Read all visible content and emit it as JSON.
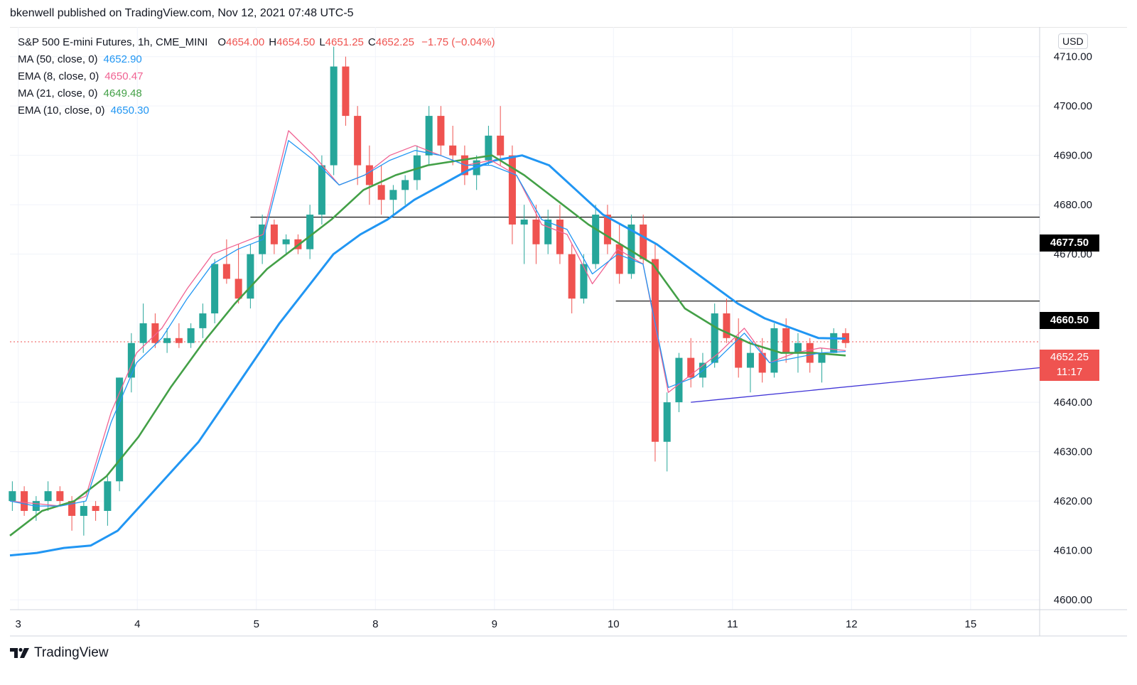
{
  "header": {
    "text": "bkenwell published on TradingView.com, Nov 12, 2021 07:48 UTC-5"
  },
  "legend": {
    "symbol": "S&P 500 E-mini Futures, 1h, CME_MINI",
    "open_label": "O",
    "open": "4654.00",
    "high_label": "H",
    "high": "4654.50",
    "low_label": "L",
    "low": "4651.25",
    "close_label": "C",
    "close": "4652.25",
    "change": "−1.75 (−0.04%)",
    "indicators": [
      {
        "name": "MA (50, close, 0)",
        "value": "4652.90",
        "color": "#2196f3"
      },
      {
        "name": "EMA (8, close, 0)",
        "value": "4650.47",
        "color": "#f06292"
      },
      {
        "name": "MA (21, close, 0)",
        "value": "4649.48",
        "color": "#43a047"
      },
      {
        "name": "EMA (10, close, 0)",
        "value": "4650.30",
        "color": "#2196f3"
      }
    ]
  },
  "currency": "USD",
  "price_tags": {
    "level_upper": "4677.50",
    "level_lower": "4660.50",
    "last_price": "4652.25",
    "countdown": "11:17"
  },
  "footer": {
    "brand": "TradingView"
  },
  "colors": {
    "up": "#26a69a",
    "down": "#ef5350",
    "ma50": "#2196f3",
    "ema8": "#f06292",
    "ma21": "#43a047",
    "ema10": "#2196f3",
    "trendline": "#3f33d6",
    "level": "#000000"
  },
  "chart_data": {
    "type": "candlestick",
    "title": "S&P 500 E-mini Futures, 1h, CME_MINI",
    "ylim": [
      4598,
      4716
    ],
    "y_ticks": [
      "4710.00",
      "4700.00",
      "4690.00",
      "4680.00",
      "4670.00",
      "4640.00",
      "4630.00",
      "4620.00",
      "4610.00",
      "4600.00"
    ],
    "x_ticks": [
      {
        "label": "3",
        "pos": 0.5
      },
      {
        "label": "4",
        "pos": 10.5
      },
      {
        "label": "5",
        "pos": 20.5
      },
      {
        "label": "8",
        "pos": 30.5
      },
      {
        "label": "9",
        "pos": 40.5
      },
      {
        "label": "10",
        "pos": 50.5
      },
      {
        "label": "11",
        "pos": 60.5
      },
      {
        "label": "12",
        "pos": 70.5
      },
      {
        "label": "15",
        "pos": 80.5
      }
    ],
    "x_range": [
      -0.2,
      86.3
    ],
    "candles": [
      [
        4620,
        4624,
        4618,
        4622
      ],
      [
        4622,
        4623,
        4617,
        4618
      ],
      [
        4618,
        4621,
        4616,
        4620
      ],
      [
        4620,
        4624,
        4618,
        4622
      ],
      [
        4622,
        4623,
        4619,
        4620
      ],
      [
        4620,
        4621,
        4614,
        4617
      ],
      [
        4617,
        4620,
        4613,
        4619
      ],
      [
        4619,
        4620,
        4616,
        4618
      ],
      [
        4618,
        4625,
        4615,
        4624
      ],
      [
        4624,
        4645,
        4622,
        4645
      ],
      [
        4645,
        4654,
        4642,
        4652
      ],
      [
        4652,
        4660,
        4650,
        4656
      ],
      [
        4656,
        4658,
        4651,
        4652
      ],
      [
        4652,
        4655,
        4650,
        4653
      ],
      [
        4653,
        4656,
        4651,
        4652
      ],
      [
        4652,
        4656,
        4651,
        4655
      ],
      [
        4655,
        4660,
        4653,
        4658
      ],
      [
        4658,
        4669,
        4656,
        4668
      ],
      [
        4668,
        4673,
        4664,
        4665
      ],
      [
        4665,
        4672,
        4660,
        4661
      ],
      [
        4661,
        4672,
        4659,
        4670
      ],
      [
        4670,
        4678,
        4668,
        4676
      ],
      [
        4676,
        4677,
        4670,
        4672
      ],
      [
        4672,
        4674,
        4670,
        4673
      ],
      [
        4673,
        4674,
        4670,
        4671
      ],
      [
        4671,
        4680,
        4669,
        4678
      ],
      [
        4678,
        4690,
        4676,
        4688
      ],
      [
        4688,
        4712,
        4686,
        4708
      ],
      [
        4708,
        4710,
        4696,
        4698
      ],
      [
        4698,
        4700,
        4684,
        4688
      ],
      [
        4688,
        4692,
        4680,
        4684
      ],
      [
        4684,
        4688,
        4678,
        4681
      ],
      [
        4681,
        4684,
        4678,
        4683
      ],
      [
        4683,
        4686,
        4680,
        4685
      ],
      [
        4685,
        4692,
        4683,
        4690
      ],
      [
        4690,
        4700,
        4688,
        4698
      ],
      [
        4698,
        4700,
        4690,
        4692
      ],
      [
        4692,
        4696,
        4688,
        4690
      ],
      [
        4690,
        4692,
        4684,
        4686
      ],
      [
        4686,
        4690,
        4683,
        4689
      ],
      [
        4689,
        4696,
        4688,
        4694
      ],
      [
        4694,
        4700,
        4688,
        4690
      ],
      [
        4690,
        4692,
        4672,
        4676
      ],
      [
        4676,
        4680,
        4668,
        4677
      ],
      [
        4677,
        4680,
        4668,
        4672
      ],
      [
        4672,
        4679,
        4670,
        4677
      ],
      [
        4677,
        4680,
        4668,
        4670
      ],
      [
        4670,
        4672,
        4658,
        4661
      ],
      [
        4661,
        4670,
        4660,
        4668
      ],
      [
        4668,
        4680,
        4667,
        4678
      ],
      [
        4678,
        4680,
        4670,
        4672
      ],
      [
        4672,
        4676,
        4664,
        4666
      ],
      [
        4666,
        4678,
        4665,
        4676
      ],
      [
        4676,
        4678,
        4668,
        4669
      ],
      [
        4669,
        4672,
        4628,
        4632
      ],
      [
        4632,
        4642,
        4626,
        4640
      ],
      [
        4640,
        4650,
        4638,
        4649
      ],
      [
        4649,
        4653,
        4643,
        4645
      ],
      [
        4645,
        4650,
        4643,
        4648
      ],
      [
        4648,
        4660,
        4647,
        4658
      ],
      [
        4658,
        4661,
        4652,
        4653
      ],
      [
        4653,
        4657,
        4645,
        4647
      ],
      [
        4647,
        4652,
        4642,
        4650
      ],
      [
        4650,
        4653,
        4644,
        4646
      ],
      [
        4646,
        4656,
        4645,
        4655
      ],
      [
        4655,
        4657,
        4648,
        4650
      ],
      [
        4650,
        4654,
        4646,
        4652
      ],
      [
        4652,
        4653,
        4646,
        4648
      ],
      [
        4648,
        4651,
        4644,
        4650
      ],
      [
        4650,
        4655,
        4650,
        4654
      ],
      [
        4654,
        4655,
        4651,
        4652
      ]
    ],
    "series": [
      {
        "name": "MA (50, close, 0)",
        "values": [
          4609,
          4609.5,
          4610.5,
          4611,
          4614,
          4620,
          4626,
          4632,
          4640,
          4648,
          4656,
          4663,
          4670,
          4674,
          4677,
          4681,
          4684,
          4687,
          4689,
          4690,
          4688,
          4683,
          4678,
          4675,
          4672,
          4668,
          4664,
          4660,
          4657,
          4655,
          4653,
          4652.9
        ]
      },
      {
        "name": "EMA (8, close, 0)",
        "values": [
          4620,
          4619.5,
          4619,
          4621,
          4638,
          4650,
          4655,
          4663,
          4670,
          4672,
          4674,
          4695,
          4690,
          4684,
          4686,
          4690,
          4692,
          4690,
          4688,
          4689,
          4686,
          4676,
          4674,
          4664,
          4671,
          4668,
          4642,
          4646,
          4650,
          4655,
          4648,
          4650,
          4651,
          4650.47
        ]
      },
      {
        "name": "MA (21, close, 0)",
        "values": [
          4613,
          4618,
          4620,
          4625,
          4633,
          4643,
          4652,
          4660,
          4667,
          4672,
          4677,
          4683,
          4686,
          4688,
          4689,
          4690,
          4686,
          4681,
          4676,
          4672,
          4668,
          4659,
          4655,
          4652,
          4650,
          4650,
          4649.48
        ]
      },
      {
        "name": "EMA (10, close, 0)",
        "values": [
          4620,
          4619,
          4619,
          4620,
          4636,
          4648,
          4653,
          4661,
          4668,
          4671,
          4673,
          4693,
          4689,
          4684,
          4686,
          4689,
          4691,
          4690,
          4688,
          4688,
          4686,
          4677,
          4675,
          4666,
          4670,
          4668,
          4643,
          4645,
          4649,
          4654,
          4648,
          4649,
          4650,
          4650.3
        ]
      }
    ],
    "horizontal_levels": [
      4677.5,
      4660.5
    ],
    "last_price": 4652.25,
    "trendline": [
      [
        57,
        4640
      ],
      [
        86.3,
        4647
      ]
    ]
  }
}
